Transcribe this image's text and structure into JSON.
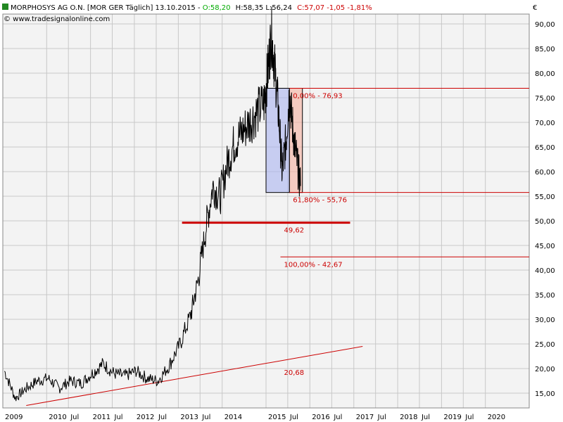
{
  "header": {
    "title_main": "MORPHOSYS AG O.N. [MOR GER  Täglich] 13.10.2015 -",
    "ohlc_open": "O:58,20",
    "ohlc_hl": "H:58,35 L:56,24",
    "ohlc_close": "C:57,07 -1,05 -1,81%",
    "source": "© www.tradesignalonline.com",
    "currency": "€"
  },
  "colors": {
    "price_line": "#000000",
    "annotation_red": "#cc0000",
    "grid": "#c8c8c8",
    "box_blue": "#aab4f0",
    "box_red": "#f5b0a0",
    "open_green": "#00aa00"
  },
  "chart_data": {
    "type": "line",
    "title": "MORPHOSYS AG O.N.",
    "y_unit": "€",
    "ylim": [
      12,
      92
    ],
    "y_ticks": [
      "15,00",
      "20,00",
      "25,00",
      "30,00",
      "35,00",
      "40,00",
      "45,00",
      "50,00",
      "55,00",
      "60,00",
      "65,00",
      "70,00",
      "75,00",
      "80,00",
      "85,00",
      "90,00"
    ],
    "x_tick_labels": [
      "2009",
      "2010",
      "Jul",
      "2011",
      "Jul",
      "2012",
      "Jul",
      "2013",
      "Jul",
      "2014",
      "2015",
      "Jul",
      "2016",
      "Jul",
      "2017",
      "Jul",
      "2018",
      "Jul",
      "2019",
      "Jul",
      "2020"
    ],
    "xlim": [
      "2009-01-01",
      "2020-12-31"
    ],
    "grid": true,
    "series": [
      {
        "values": [
          [
            "2009-01",
            "19.5"
          ],
          [
            "2009-04",
            "14.0"
          ],
          [
            "2009-07",
            "16.0"
          ],
          [
            "2009-10",
            "17.5"
          ],
          [
            "2010-01",
            "18.0"
          ],
          [
            "2010-04",
            "16.0"
          ],
          [
            "2010-07",
            "17.5"
          ],
          [
            "2010-10",
            "17.0"
          ],
          [
            "2011-01",
            "19.0"
          ],
          [
            "2011-04",
            "21.0"
          ],
          [
            "2011-07",
            "19.0"
          ],
          [
            "2011-10",
            "18.5"
          ],
          [
            "2012-01",
            "19.5"
          ],
          [
            "2012-04",
            "18.0"
          ],
          [
            "2012-07",
            "17.5"
          ],
          [
            "2012-10",
            "20.5"
          ],
          [
            "2013-01",
            "25.0"
          ],
          [
            "2013-04",
            "31.0"
          ],
          [
            "2013-06",
            "38.0"
          ],
          [
            "2013-08",
            "48.0"
          ],
          [
            "2013-10",
            "57.0"
          ],
          [
            "2013-12",
            "55.0"
          ],
          [
            "2014-02",
            "62.0"
          ],
          [
            "2014-04",
            "66.0"
          ],
          [
            "2014-06",
            "68.0"
          ],
          [
            "2014-08",
            "70.0"
          ],
          [
            "2014-10",
            "72.0"
          ],
          [
            "2014-12",
            "74.0"
          ],
          [
            "2015-01",
            "80.0"
          ],
          [
            "2015-02",
            "88.0"
          ],
          [
            "2015-03",
            "81.0"
          ],
          [
            "2015-04",
            "72.0"
          ],
          [
            "2015-05",
            "60.0"
          ],
          [
            "2015-06",
            "66.0"
          ],
          [
            "2015-07",
            "76.0"
          ],
          [
            "2015-08",
            "68.0"
          ],
          [
            "2015-09",
            "62.0"
          ],
          [
            "2015-10",
            "57.07"
          ]
        ]
      }
    ],
    "fibonacci": {
      "levels": [
        {
          "label": "0,00% - 76,93",
          "value": 76.93
        },
        {
          "label": "61,80% - 55,76",
          "value": 55.76
        },
        {
          "label": "100,00% - 42,67",
          "value": 42.67
        }
      ]
    },
    "support_level": {
      "label": "49,62",
      "value": 49.62
    },
    "trendline": {
      "label": "20,68",
      "start": [
        "2009-07",
        12.5
      ],
      "end": [
        "2017-03",
        24.5
      ]
    }
  }
}
